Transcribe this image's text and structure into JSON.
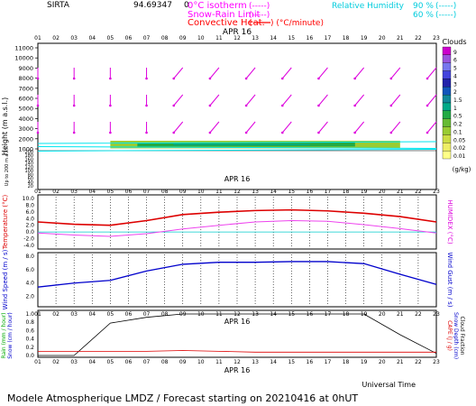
{
  "header": {
    "station": "SIRTA",
    "code": "94.69347",
    "code_suffix": "0",
    "legend": [
      {
        "label": "0°C isotherm",
        "sample": "(-----)",
        "color": "#ff00ff"
      },
      {
        "label": "Snow-Rain Limit",
        "sample": "(-----)",
        "color": "#ff00ff"
      },
      {
        "label": "Convective Heat.",
        "sample": "(",
        "suffix": ")  (°C/minute)",
        "color": "#ff0000"
      }
    ],
    "rh_label": "Relative Humidity",
    "rh_values": [
      "90 %",
      "60 %"
    ],
    "rh_samples": [
      "(-----)",
      "(-----)"
    ],
    "rh_color": "#00e5ee"
  },
  "colorbar": {
    "title": "Clouds",
    "unit": "(g/kg)",
    "levels": [
      "9",
      "6",
      "5",
      "4",
      "3",
      "2",
      "1.5",
      "1",
      "0.5",
      "0.2",
      "0.1",
      "0.05",
      "0.02",
      "0.01"
    ],
    "colors": [
      "#cc00cc",
      "#9955dd",
      "#7777ee",
      "#4444dd",
      "#2222aa",
      "#1155bb",
      "#118899",
      "#00aa88",
      "#22aa44",
      "#66bb33",
      "#99cc33",
      "#ccdd44",
      "#eeee66",
      "#ffff88"
    ]
  },
  "date_label": "APR 16",
  "hour_labels": [
    "01",
    "02",
    "03",
    "04",
    "05",
    "06",
    "07",
    "08",
    "09",
    "10",
    "11",
    "12",
    "13",
    "14",
    "15",
    "16",
    "17",
    "18",
    "19",
    "20",
    "21",
    "22",
    "23"
  ],
  "footer": {
    "xaxis_label": "Universal Time",
    "title": "Modele Atmospherique LMDZ / Forecast starting on 20210416 at 0hUT"
  },
  "chart_data": [
    {
      "type": "heatmap",
      "name": "cloud-water-and-wind-profile",
      "ylabel": "Height  (m a.s.l.)",
      "ylabel_low": "Up to 200 m a.s.l.",
      "y_ticks_upper": [
        "11000",
        "10000",
        "9000",
        "8000",
        "7000",
        "6000",
        "5000",
        "4000",
        "3000",
        "2000",
        "1000"
      ],
      "y_ticks_lower": [
        "200",
        "180",
        "160",
        "140",
        "120",
        "100",
        "80",
        "60",
        "40",
        "20"
      ],
      "x_hours": [
        1,
        23
      ],
      "cloud_layer_m": [
        1050,
        1800
      ],
      "cloud_hours": [
        5,
        21
      ]
    },
    {
      "type": "line",
      "name": "temperature-humidex",
      "ylabel": "Temperature (°C)",
      "y2label": "HUMIDEX (°C)",
      "y_ticks": [
        "10.0",
        "8.0",
        "6.0",
        "4.0",
        "2.0",
        "0.0",
        "-2.0",
        "-4.0"
      ],
      "ylim": [
        -4,
        10
      ],
      "x": [
        1,
        3,
        5,
        7,
        9,
        11,
        13,
        15,
        17,
        19,
        21,
        23
      ],
      "series": [
        {
          "values": [
            3.0,
            2.3,
            2.0,
            3.4,
            5.2,
            5.9,
            6.4,
            6.6,
            6.3,
            5.6,
            4.6,
            3.0
          ],
          "color": "#dd0000"
        },
        {
          "values": [
            -0.3,
            -0.9,
            -1.3,
            -0.5,
            0.9,
            2.0,
            3.0,
            3.4,
            3.2,
            2.2,
            1.0,
            -0.3
          ],
          "color": "#ee44ee"
        }
      ]
    },
    {
      "type": "line",
      "name": "wind-speed",
      "ylabel": "Wind Speed (m / s)",
      "y2label": "Wind Gust (m / s)",
      "y_ticks": [
        "8.0",
        "6.0",
        "4.0",
        "2.0"
      ],
      "ylim": [
        1,
        8
      ],
      "x": [
        1,
        3,
        5,
        7,
        9,
        11,
        13,
        15,
        17,
        19,
        21,
        23
      ],
      "series": [
        {
          "values": [
            3.4,
            4.0,
            4.4,
            5.8,
            6.8,
            7.1,
            7.1,
            7.2,
            7.2,
            6.9,
            5.3,
            3.8
          ],
          "color": "#0000cc"
        }
      ]
    },
    {
      "type": "line",
      "name": "precipitation",
      "ylabel": "Rain (mm / hour)",
      "ylabel2": "Snow (cm / hour)",
      "y2label": "CAPE (J / g)",
      "y2label2": "Snow Depth (cm)",
      "y2label3": "Cloud Fraction",
      "y_ticks": [
        "1.0",
        "0.8",
        "0.6",
        "0.4",
        "0.2",
        "0.0"
      ],
      "ylim": [
        0,
        1
      ],
      "x": [
        1,
        3,
        5,
        7,
        9,
        11,
        13,
        15,
        17,
        19,
        21,
        23
      ],
      "series": [
        {
          "values": [
            0.0,
            0.0,
            0.78,
            0.92,
            1.0,
            1.0,
            1.0,
            1.0,
            1.0,
            1.0,
            0.5,
            0.05
          ],
          "color": "#000000"
        },
        {
          "values": [
            0.1,
            0.1,
            0.1,
            0.1,
            0.12,
            0.1,
            0.08,
            0.08,
            0.08,
            0.08,
            0.08,
            0.08
          ],
          "color": "#dd0000"
        }
      ]
    }
  ]
}
